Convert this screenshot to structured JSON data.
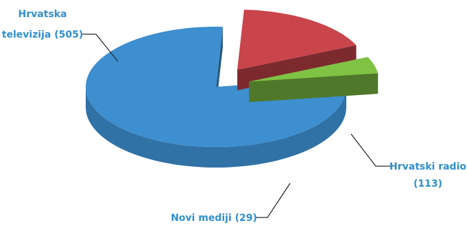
{
  "chart_data": {
    "type": "pie",
    "style": "3d-exploded",
    "title": "",
    "slices": [
      {
        "name": "Hrvatska televizija",
        "value": 505,
        "color": "#3d8fd0",
        "label_lines": [
          "Hrvatska",
          "televizija (505)"
        ]
      },
      {
        "name": "Hrvatski radio",
        "value": 113,
        "color": "#c9444b",
        "label_lines": [
          "Hrvatski radio",
          "(113)"
        ]
      },
      {
        "name": "Novi mediji",
        "value": 29,
        "color": "#7fc244",
        "label_lines": [
          "Novi mediji (29)"
        ]
      }
    ],
    "label_color": "#2f8fcf"
  }
}
